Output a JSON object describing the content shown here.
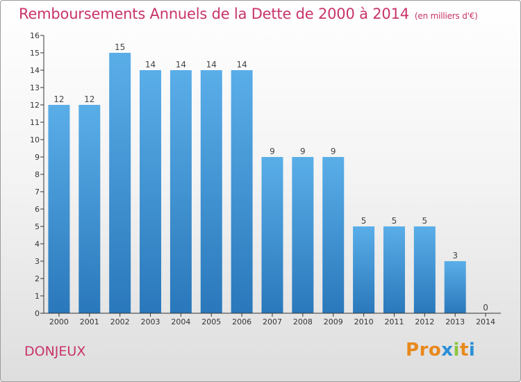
{
  "header": {
    "title": "Remboursements Annuels de la Dette de 2000 à 2014",
    "subtitle": "(en milliers d'€)"
  },
  "footer": {
    "commune": "DONJEUX",
    "logo_text": "Proxiti"
  },
  "colors": {
    "title": "#c8336a",
    "bar_top": "#5aaee8",
    "bar_bottom": "#2a78bb",
    "logo_letters": [
      "#e8891c",
      "#e8891c",
      "#e8891c",
      "#2b8fd6",
      "#8cc63f",
      "#e8891c",
      "#2b8fd6"
    ]
  },
  "chart_data": {
    "type": "bar",
    "title": "Remboursements Annuels de la Dette de 2000 à 2014",
    "subtitle": "(en milliers d'€)",
    "xlabel": "",
    "ylabel": "",
    "categories": [
      "2000",
      "2001",
      "2002",
      "2003",
      "2004",
      "2005",
      "2006",
      "2007",
      "2008",
      "2009",
      "2010",
      "2011",
      "2012",
      "2013",
      "2014"
    ],
    "values": [
      12,
      12,
      15,
      14,
      14,
      14,
      14,
      9,
      9,
      9,
      5,
      5,
      5,
      3,
      0
    ],
    "data_labels": [
      "12",
      "12",
      "15",
      "14",
      "14",
      "14",
      "14",
      "9",
      "9",
      "9",
      "5",
      "5",
      "5",
      "3",
      "0"
    ],
    "ylim": [
      0,
      16
    ],
    "yticks": [
      "0",
      "1",
      "2",
      "3",
      "4",
      "5",
      "6",
      "7",
      "8",
      "9",
      "10",
      "11",
      "12",
      "13",
      "14",
      "15",
      "16"
    ],
    "grid": false,
    "legend": "none"
  }
}
